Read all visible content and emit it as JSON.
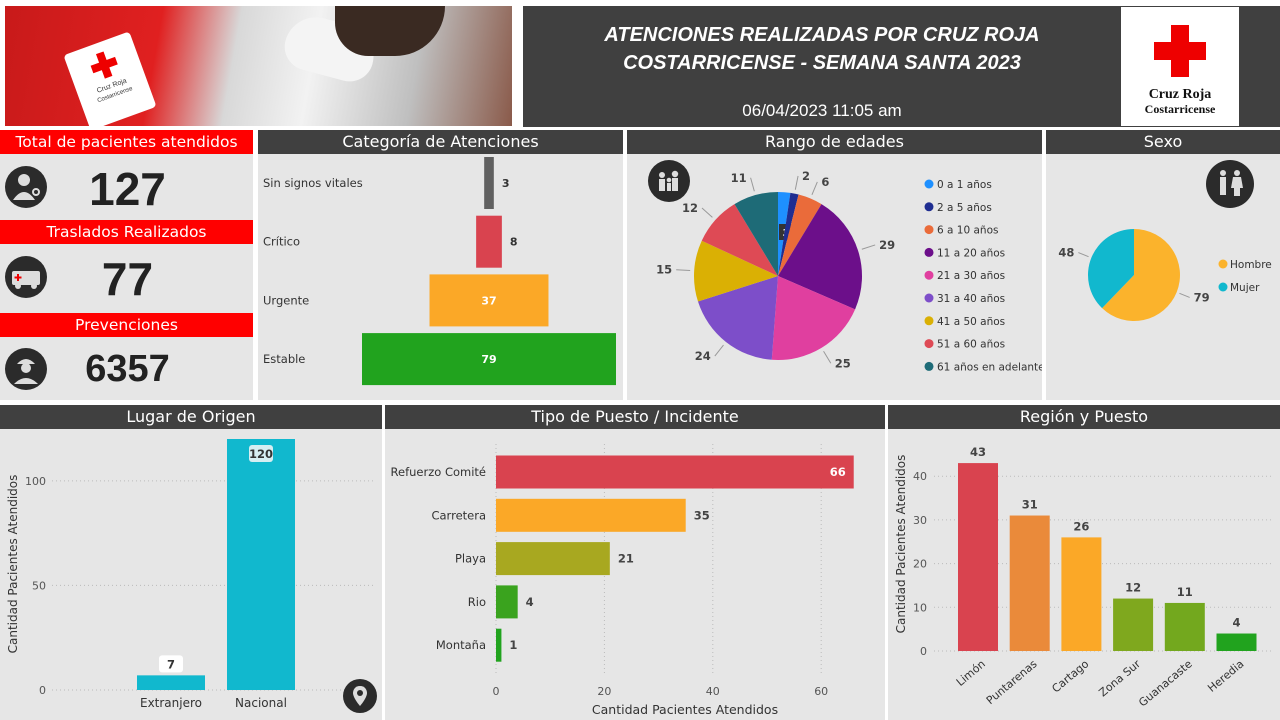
{
  "header": {
    "title_line1": "ATENCIONES REALIZADAS POR CRUZ ROJA",
    "title_line2": "COSTARRICENSE - SEMANA SANTA 2023",
    "datetime": "06/04/2023 11:05 am",
    "logo_text1": "Cruz Roja",
    "logo_text2": "Costarricense",
    "photo_vest_text1": "Cruz Roja",
    "photo_vest_text2": "Costarricense"
  },
  "kpis": [
    {
      "label": "Total de pacientes atendidos",
      "value": "127",
      "icon": "doctor-icon"
    },
    {
      "label": "Traslados Realizados",
      "value": "77",
      "icon": "ambulance-icon"
    },
    {
      "label": "Prevenciones",
      "value": "6357",
      "icon": "rescuer-icon"
    }
  ],
  "colors": {
    "red": "#ff0000",
    "dark_header": "#404040",
    "panel_bg": "#e6e6e6",
    "cyan": "#11b8ce"
  },
  "chart_data": [
    {
      "id": "categoria",
      "title": "Categoría de Atenciones",
      "type": "bar",
      "orientation": "horizontal-funnel",
      "categories": [
        "Sin signos vitales",
        "Crítico",
        "Urgente",
        "Estable"
      ],
      "values": [
        3,
        8,
        37,
        79
      ],
      "colors": [
        "#606060",
        "#d9434f",
        "#fba827",
        "#21a31e"
      ]
    },
    {
      "id": "edades",
      "title": "Rango de edades",
      "type": "pie",
      "labels": [
        "0 a 1 años",
        "2 a 5 años",
        "6 a 10 años",
        "11 a 20 años",
        "21 a 30 años",
        "31 a 40 años",
        "41 a 50 años",
        "51 a 60 años",
        "61 años en adelante"
      ],
      "values": [
        3,
        2,
        6,
        29,
        25,
        24,
        15,
        12,
        11
      ],
      "colors": [
        "#1e90ff",
        "#1f2d91",
        "#ea6b3a",
        "#6c0f8a",
        "#e03f9f",
        "#7d4ec9",
        "#dab004",
        "#de4a55",
        "#1e6b77"
      ],
      "legend": "right"
    },
    {
      "id": "sexo",
      "title": "Sexo",
      "type": "pie",
      "labels": [
        "Hombre",
        "Mujer"
      ],
      "values": [
        79,
        48
      ],
      "colors": [
        "#fbb32c",
        "#11b8ce"
      ],
      "legend": "right"
    },
    {
      "id": "origen",
      "title": "Lugar de Origen",
      "type": "bar",
      "categories": [
        "Extranjero",
        "Nacional"
      ],
      "values": [
        7,
        120
      ],
      "ylabel": "Cantidad Pacientes Atendidos",
      "yticks": [
        "0",
        "50",
        "100"
      ],
      "ylim": [
        0,
        120
      ],
      "color": "#11b8ce"
    },
    {
      "id": "puesto",
      "title": "Tipo de Puesto / Incidente",
      "type": "bar",
      "orientation": "horizontal",
      "categories": [
        "Refuerzo Comité",
        "Carretera",
        "Playa",
        "Rio",
        "Montaña"
      ],
      "values": [
        66,
        35,
        21,
        4,
        1
      ],
      "xlabel": "Cantidad Pacientes Atendidos",
      "xticks": [
        "0",
        "20",
        "40",
        "60"
      ],
      "xlim": [
        0,
        70
      ],
      "colors": [
        "#d9434f",
        "#fba827",
        "#a8a820",
        "#3aa31e",
        "#21a31e"
      ]
    },
    {
      "id": "region",
      "title": "Región y Puesto",
      "type": "bar",
      "categories": [
        "Limón",
        "Puntarenas",
        "Cartago",
        "Zona Sur",
        "Guanacaste",
        "Heredia"
      ],
      "values": [
        43,
        31,
        26,
        12,
        11,
        4
      ],
      "ylabel": "Cantidad Pacientes Atendidos",
      "yticks": [
        "0",
        "10",
        "20",
        "30",
        "40"
      ],
      "ylim": [
        0,
        45
      ],
      "colors": [
        "#d9434f",
        "#ea8a3a",
        "#fba827",
        "#7fa81e",
        "#73a81e",
        "#21a31e"
      ]
    }
  ]
}
